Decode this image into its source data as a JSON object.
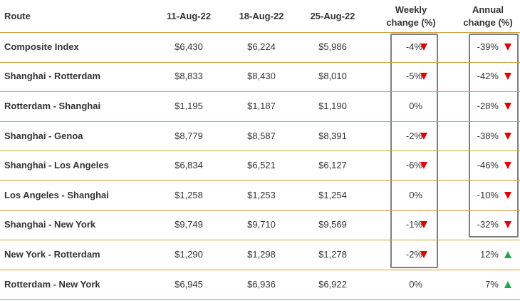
{
  "table": {
    "header": [
      "Route",
      "11-Aug-22",
      "18-Aug-22",
      "25-Aug-22",
      [
        "Weekly",
        "change (%)"
      ],
      [
        "Annual",
        "change (%)"
      ]
    ],
    "rows": [
      [
        "Composite Index",
        "$6,430",
        "$6,224",
        "$5,986",
        "-4%",
        "-39%"
      ],
      [
        "Shanghai - Rotterdam",
        "$8,833",
        "$8,430",
        "$8,010",
        "-5%",
        "-42%"
      ],
      [
        "Rotterdam - Shanghai",
        "$1,195",
        "$1,187",
        "$1,190",
        "0%",
        "-28%"
      ],
      [
        "Shanghai - Genoa",
        "$8,779",
        "$8,587",
        "$8,391",
        "-2%",
        "-38%"
      ],
      [
        "Shanghai - Los Angeles",
        "$6,834",
        "$6,521",
        "$6,127",
        "-6%",
        "-46%"
      ],
      [
        "Los Angeles - Shanghai",
        "$1,258",
        "$1,253",
        "$1,254",
        "0%",
        "-10%"
      ],
      [
        "Shanghai - New York",
        "$9,749",
        "$9,710",
        "$9,569",
        "-1%",
        "-32%"
      ],
      [
        "New York - Rotterdam",
        "$1,290",
        "$1,298",
        "$1,278",
        "-2%",
        "12%"
      ],
      [
        "Rotterdam - New York",
        "$6,945",
        "$6,936",
        "$6,922",
        "0%",
        "7%"
      ]
    ]
  }
}
